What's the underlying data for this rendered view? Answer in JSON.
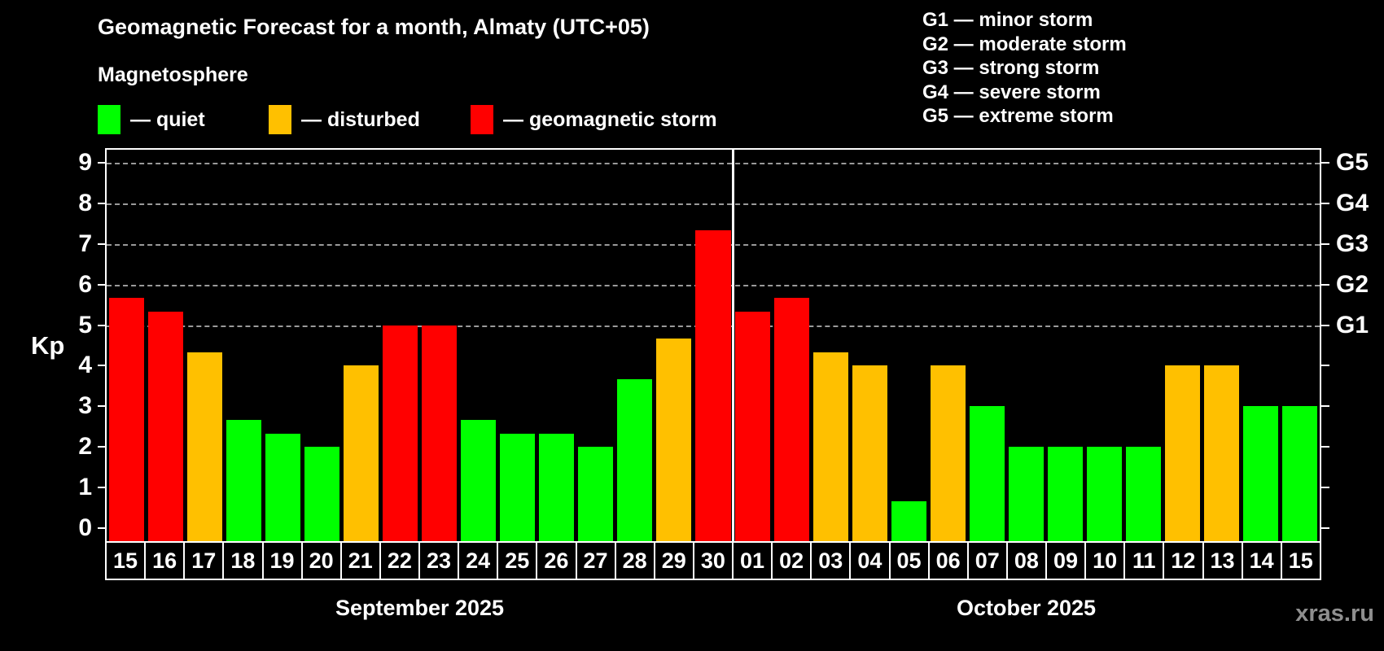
{
  "title": "Geomagnetic Forecast for a month, Almaty (UTC+05)",
  "subtitle": "Magnetosphere",
  "watermark": "xras.ru",
  "colors": {
    "quiet": "#00ff00",
    "disturbed": "#ffc000",
    "storm": "#ff0000",
    "background": "#000000",
    "axis": "#ffffff",
    "gridline": "#9a9a9a",
    "watermark": "#8f8f8f"
  },
  "legend": {
    "items": [
      {
        "key": "quiet",
        "label": "— quiet"
      },
      {
        "key": "disturbed",
        "label": "— disturbed"
      },
      {
        "key": "storm",
        "label": "— geomagnetic storm"
      }
    ]
  },
  "storm_scale_legend": [
    {
      "code": "G1",
      "label": "G1 — minor storm"
    },
    {
      "code": "G2",
      "label": "G2 — moderate storm"
    },
    {
      "code": "G3",
      "label": "G3 — strong storm"
    },
    {
      "code": "G4",
      "label": "G4 — severe storm"
    },
    {
      "code": "G5",
      "label": "G5 — extreme storm"
    }
  ],
  "y_axis": {
    "label": "Kp",
    "ticks": [
      0,
      1,
      2,
      3,
      4,
      5,
      6,
      7,
      8,
      9
    ]
  },
  "right_axis": {
    "labels": [
      {
        "code": "G1",
        "kp": 5
      },
      {
        "code": "G2",
        "kp": 6
      },
      {
        "code": "G3",
        "kp": 7
      },
      {
        "code": "G4",
        "kp": 8
      },
      {
        "code": "G5",
        "kp": 9
      }
    ]
  },
  "chart_data": {
    "type": "bar",
    "title": "Geomagnetic Forecast for a month, Almaty (UTC+05)",
    "xlabel": "",
    "ylabel": "Kp",
    "ylim": [
      0,
      9
    ],
    "grid": "dashed horizontal at Kp 5-9 (G1-G5)",
    "legend_position": "top-left",
    "months": [
      {
        "label": "September 2025",
        "days": 16
      },
      {
        "label": "October 2025",
        "days": 15
      }
    ],
    "bars": [
      {
        "month": "September 2025",
        "day": "15",
        "kp": 5.67,
        "status": "storm"
      },
      {
        "month": "September 2025",
        "day": "16",
        "kp": 5.33,
        "status": "storm"
      },
      {
        "month": "September 2025",
        "day": "17",
        "kp": 4.33,
        "status": "disturbed"
      },
      {
        "month": "September 2025",
        "day": "18",
        "kp": 2.67,
        "status": "quiet"
      },
      {
        "month": "September 2025",
        "day": "19",
        "kp": 2.33,
        "status": "quiet"
      },
      {
        "month": "September 2025",
        "day": "20",
        "kp": 2.0,
        "status": "quiet"
      },
      {
        "month": "September 2025",
        "day": "21",
        "kp": 4.0,
        "status": "disturbed"
      },
      {
        "month": "September 2025",
        "day": "22",
        "kp": 5.0,
        "status": "storm"
      },
      {
        "month": "September 2025",
        "day": "23",
        "kp": 5.0,
        "status": "storm"
      },
      {
        "month": "September 2025",
        "day": "24",
        "kp": 2.67,
        "status": "quiet"
      },
      {
        "month": "September 2025",
        "day": "25",
        "kp": 2.33,
        "status": "quiet"
      },
      {
        "month": "September 2025",
        "day": "26",
        "kp": 2.33,
        "status": "quiet"
      },
      {
        "month": "September 2025",
        "day": "27",
        "kp": 2.0,
        "status": "quiet"
      },
      {
        "month": "September 2025",
        "day": "28",
        "kp": 3.67,
        "status": "quiet"
      },
      {
        "month": "September 2025",
        "day": "29",
        "kp": 4.67,
        "status": "disturbed"
      },
      {
        "month": "September 2025",
        "day": "30",
        "kp": 7.33,
        "status": "storm"
      },
      {
        "month": "October 2025",
        "day": "01",
        "kp": 5.33,
        "status": "storm"
      },
      {
        "month": "October 2025",
        "day": "02",
        "kp": 5.67,
        "status": "storm"
      },
      {
        "month": "October 2025",
        "day": "03",
        "kp": 4.33,
        "status": "disturbed"
      },
      {
        "month": "October 2025",
        "day": "04",
        "kp": 4.0,
        "status": "disturbed"
      },
      {
        "month": "October 2025",
        "day": "05",
        "kp": 0.67,
        "status": "quiet"
      },
      {
        "month": "October 2025",
        "day": "06",
        "kp": 4.0,
        "status": "disturbed"
      },
      {
        "month": "October 2025",
        "day": "07",
        "kp": 3.0,
        "status": "quiet"
      },
      {
        "month": "October 2025",
        "day": "08",
        "kp": 2.0,
        "status": "quiet"
      },
      {
        "month": "October 2025",
        "day": "09",
        "kp": 2.0,
        "status": "quiet"
      },
      {
        "month": "October 2025",
        "day": "10",
        "kp": 2.0,
        "status": "quiet"
      },
      {
        "month": "October 2025",
        "day": "11",
        "kp": 2.0,
        "status": "quiet"
      },
      {
        "month": "October 2025",
        "day": "12",
        "kp": 4.0,
        "status": "disturbed"
      },
      {
        "month": "October 2025",
        "day": "13",
        "kp": 4.0,
        "status": "disturbed"
      },
      {
        "month": "October 2025",
        "day": "14",
        "kp": 3.0,
        "status": "quiet"
      },
      {
        "month": "October 2025",
        "day": "15",
        "kp": 3.0,
        "status": "quiet"
      }
    ]
  }
}
